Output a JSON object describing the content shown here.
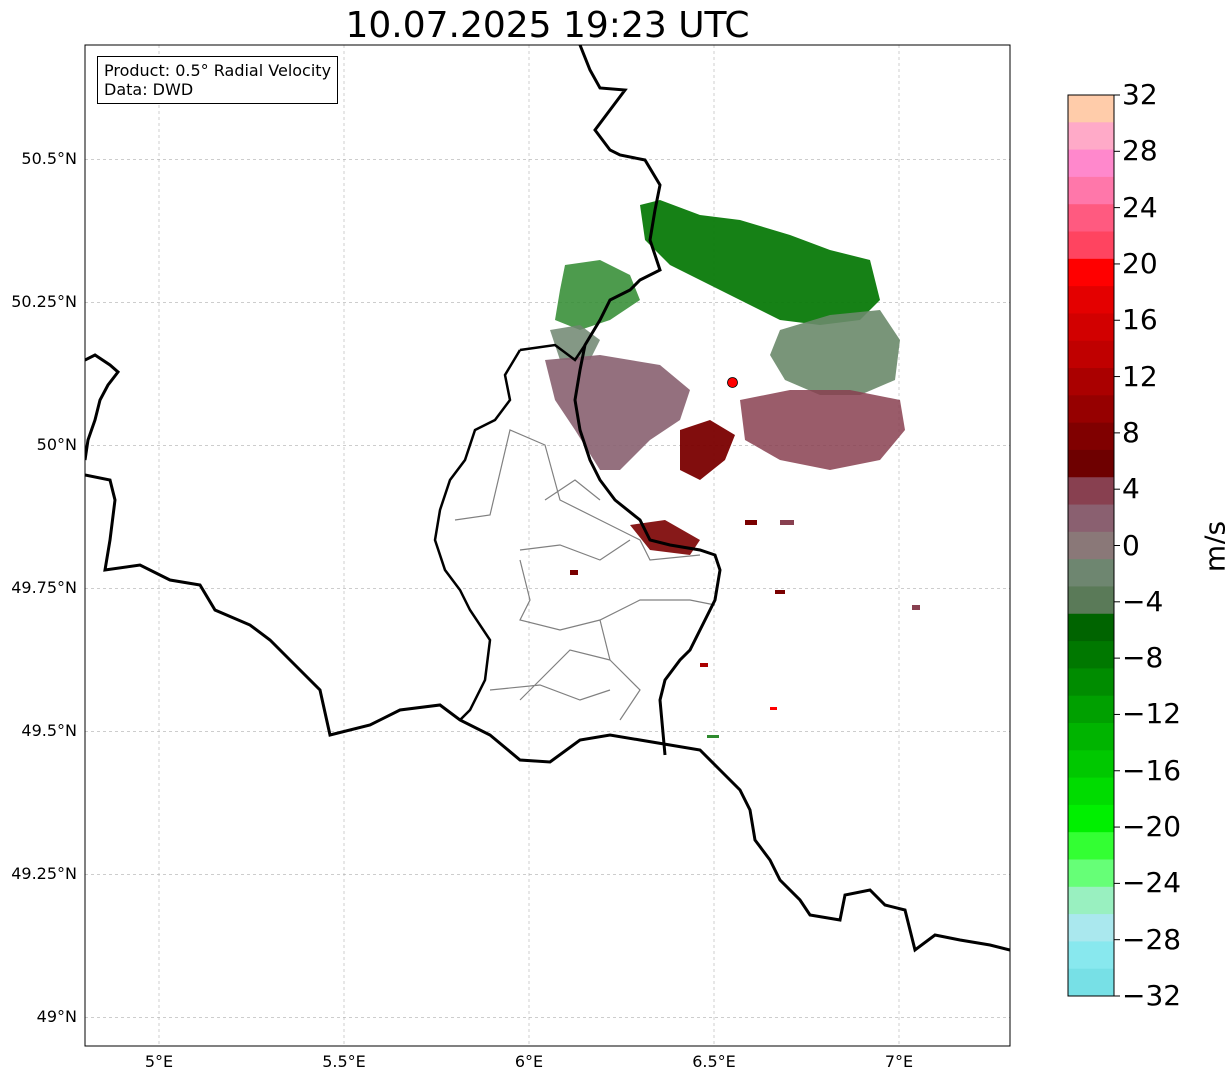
{
  "title": "10.07.2025 19:23 UTC",
  "legend": {
    "product": "Product: 0.5° Radial Velocity",
    "source": "Data: DWD"
  },
  "map_extent": {
    "lon": [
      4.8,
      7.3
    ],
    "lat": [
      48.95,
      50.7
    ]
  },
  "radar_site": {
    "lon": 6.55,
    "lat": 50.11,
    "color": "#ff0000"
  },
  "x_ticks": [
    {
      "value": 5.0,
      "label": "5°E"
    },
    {
      "value": 5.5,
      "label": "5.5°E"
    },
    {
      "value": 6.0,
      "label": "6°E"
    },
    {
      "value": 6.5,
      "label": "6.5°E"
    },
    {
      "value": 7.0,
      "label": "7°E"
    }
  ],
  "y_ticks": [
    {
      "value": 50.5,
      "label": "50.5°N"
    },
    {
      "value": 50.25,
      "label": "50.25°N"
    },
    {
      "value": 50.0,
      "label": "50°N"
    },
    {
      "value": 49.75,
      "label": "49.75°N"
    },
    {
      "value": 49.5,
      "label": "49.5°N"
    },
    {
      "value": 49.25,
      "label": "49.25°N"
    },
    {
      "value": 49.0,
      "label": "49°N"
    }
  ],
  "colorbar": {
    "unit": "m/s",
    "range": [
      -32,
      32
    ],
    "ticks": [
      {
        "value": 32,
        "label": "32"
      },
      {
        "value": 28,
        "label": "28"
      },
      {
        "value": 24,
        "label": "24"
      },
      {
        "value": 20,
        "label": "20"
      },
      {
        "value": 16,
        "label": "16"
      },
      {
        "value": 12,
        "label": "12"
      },
      {
        "value": 8,
        "label": "8"
      },
      {
        "value": 4,
        "label": "4"
      },
      {
        "value": 0,
        "label": "0"
      },
      {
        "value": -4,
        "label": "−4"
      },
      {
        "value": -8,
        "label": "−8"
      },
      {
        "value": -12,
        "label": "−12"
      },
      {
        "value": -16,
        "label": "−16"
      },
      {
        "value": -20,
        "label": "−20"
      },
      {
        "value": -24,
        "label": "−24"
      },
      {
        "value": -28,
        "label": "−28"
      },
      {
        "value": -32,
        "label": "−32"
      }
    ],
    "colors_top_to_bottom": [
      "#ffccaa",
      "#ffaac8",
      "#ff88cc",
      "#ff77aa",
      "#ff5a80",
      "#ff4460",
      "#ff0000",
      "#e40000",
      "#d20000",
      "#c00000",
      "#aa0000",
      "#960000",
      "#800000",
      "#6e0000",
      "#884050",
      "#8a6070",
      "#8a7878",
      "#6e8670",
      "#5a7a58",
      "#006400",
      "#007800",
      "#008c00",
      "#00a000",
      "#00b400",
      "#00c800",
      "#00dc00",
      "#00f000",
      "#33ff33",
      "#66ff77",
      "#99f0c0",
      "#aae8ee",
      "#88e8ee",
      "#77e0e6"
    ]
  }
}
